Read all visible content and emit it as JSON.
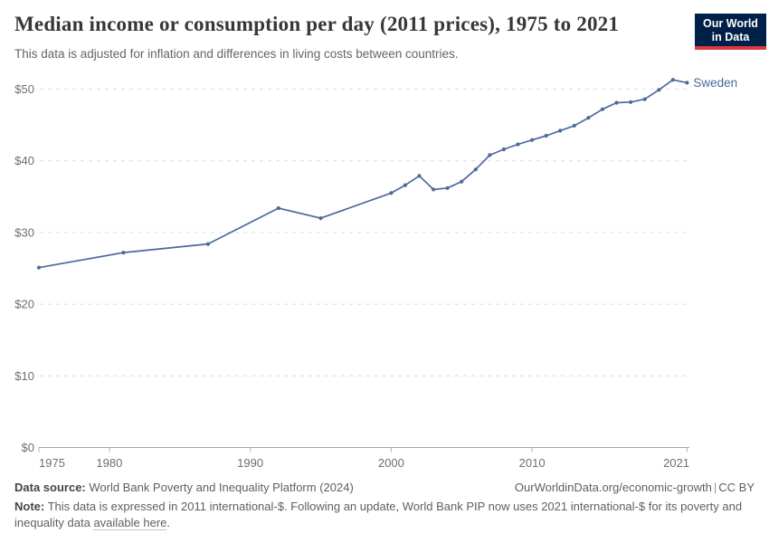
{
  "header": {
    "title": "Median income or consumption per day (2011 prices), 1975 to 2021",
    "subtitle": "This data is adjusted for inflation and differences in living costs between countries.",
    "logo": {
      "line1": "Our World",
      "line2": "in Data",
      "bg_color": "#002147",
      "accent_color": "#e0373f"
    }
  },
  "chart_data": {
    "type": "line",
    "title": "Median income or consumption per day (2011 prices), 1975 to 2021",
    "xlabel": "",
    "ylabel": "",
    "xlim": [
      1975,
      2021
    ],
    "ylim": [
      0,
      50
    ],
    "grid": "horizontal-dashed",
    "legend_position": "end-of-line-label",
    "x_ticks": [
      {
        "year": 1975,
        "label": "1975"
      },
      {
        "year": 1980,
        "label": "1980"
      },
      {
        "year": 1990,
        "label": "1990"
      },
      {
        "year": 2000,
        "label": "2000"
      },
      {
        "year": 2010,
        "label": "2010"
      },
      {
        "year": 2021,
        "label": "2021"
      }
    ],
    "y_ticks": [
      {
        "value": 0,
        "label": "$0"
      },
      {
        "value": 10,
        "label": "$10"
      },
      {
        "value": 20,
        "label": "$20"
      },
      {
        "value": 30,
        "label": "$30"
      },
      {
        "value": 40,
        "label": "$40"
      },
      {
        "value": 50,
        "label": "$50"
      }
    ],
    "series": [
      {
        "name": "Sweden",
        "color": "#4c6a9c",
        "points": [
          [
            1975,
            25.1
          ],
          [
            1981,
            27.2
          ],
          [
            1987,
            28.4
          ],
          [
            1992,
            33.4
          ],
          [
            1995,
            32.0
          ],
          [
            2000,
            35.5
          ],
          [
            2001,
            36.6
          ],
          [
            2002,
            37.9
          ],
          [
            2003,
            36.0
          ],
          [
            2004,
            36.2
          ],
          [
            2005,
            37.1
          ],
          [
            2006,
            38.8
          ],
          [
            2007,
            40.8
          ],
          [
            2008,
            41.6
          ],
          [
            2009,
            42.3
          ],
          [
            2010,
            42.9
          ],
          [
            2011,
            43.5
          ],
          [
            2012,
            44.2
          ],
          [
            2013,
            44.9
          ],
          [
            2014,
            46.0
          ],
          [
            2015,
            47.2
          ],
          [
            2016,
            48.1
          ],
          [
            2017,
            48.2
          ],
          [
            2018,
            48.6
          ],
          [
            2019,
            49.9
          ],
          [
            2020,
            51.3
          ],
          [
            2021,
            50.9
          ]
        ]
      }
    ]
  },
  "footer": {
    "data_source_label": "Data source:",
    "data_source_value": " World Bank Poverty and Inequality Platform (2024)",
    "url": "OurWorldinData.org/economic-growth",
    "divider": "|",
    "license": "CC BY",
    "note_label": "Note:",
    "note_text": " This data is expressed in 2011 international-$. Following an update, World Bank PIP now uses 2021 international-$ for its poverty and inequality data ",
    "note_link": "available here",
    "note_after": "."
  }
}
